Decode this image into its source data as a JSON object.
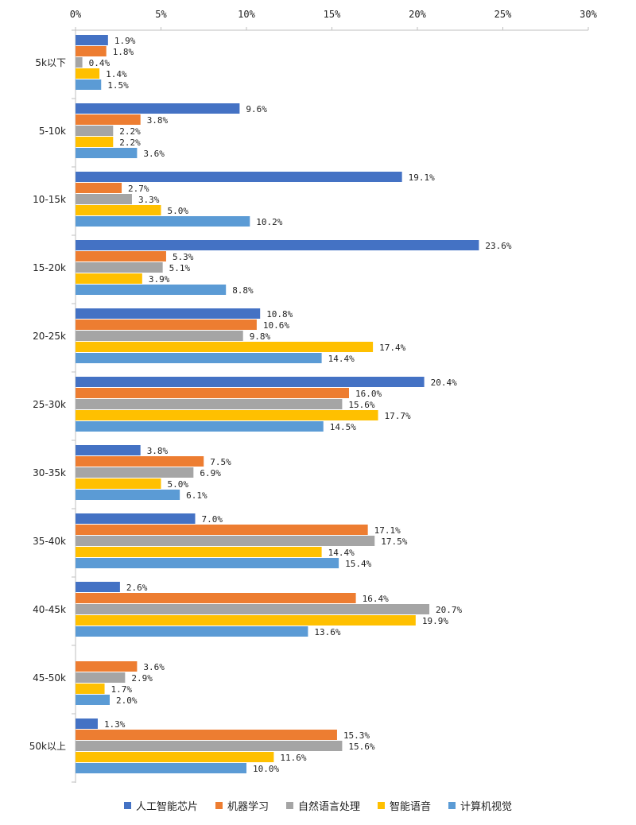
{
  "chart_data": {
    "type": "bar",
    "orientation": "horizontal",
    "title": "",
    "xlabel": "",
    "ylabel": "",
    "xlim": [
      0,
      30
    ],
    "x_ticks": [
      "0%",
      "5%",
      "10%",
      "15%",
      "20%",
      "25%",
      "30%"
    ],
    "x_tick_values": [
      0,
      5,
      10,
      15,
      20,
      25,
      30
    ],
    "grid": false,
    "legend_position": "bottom",
    "categories": [
      "5k以下",
      "5-10k",
      "10-15k",
      "15-20k",
      "20-25k",
      "25-30k",
      "30-35k",
      "35-40k",
      "40-45k",
      "45-50k",
      "50k以上"
    ],
    "series": [
      {
        "name": "人工智能芯片",
        "color": "#4472c4",
        "values": [
          1.9,
          9.6,
          19.1,
          23.6,
          10.8,
          20.4,
          3.8,
          7.0,
          2.6,
          null,
          1.3
        ]
      },
      {
        "name": "机器学习",
        "color": "#ed7d31",
        "values": [
          1.8,
          3.8,
          2.7,
          5.3,
          10.6,
          16.0,
          7.5,
          17.1,
          16.4,
          3.6,
          15.3
        ]
      },
      {
        "name": "自然语言处理",
        "color": "#a5a5a5",
        "values": [
          0.4,
          2.2,
          3.3,
          5.1,
          9.8,
          15.6,
          6.9,
          17.5,
          20.7,
          2.9,
          15.6
        ]
      },
      {
        "name": "智能语音",
        "color": "#ffc000",
        "values": [
          1.4,
          2.2,
          5.0,
          3.9,
          17.4,
          17.7,
          5.0,
          14.4,
          19.9,
          1.7,
          11.6
        ]
      },
      {
        "name": "计算机视觉",
        "color": "#5b9bd5",
        "values": [
          1.5,
          3.6,
          10.2,
          8.8,
          14.4,
          14.5,
          6.1,
          15.4,
          13.6,
          2.0,
          10.0
        ]
      }
    ]
  }
}
